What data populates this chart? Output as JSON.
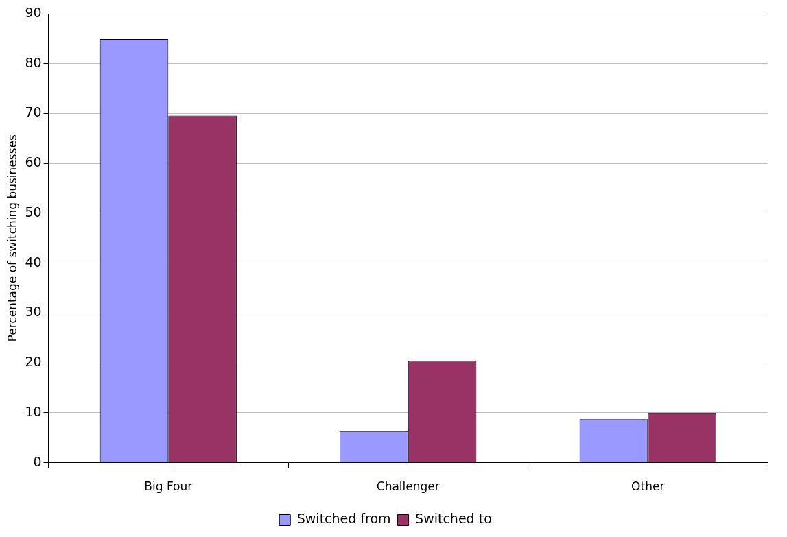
{
  "chart_data": {
    "type": "bar",
    "ylabel": "Percentage of switching businesses",
    "categories": [
      "Big Four",
      "Challenger",
      "Other"
    ],
    "series": [
      {
        "name": "Switched from",
        "color": "#9999ff",
        "values": [
          84.9,
          6.3,
          8.7
        ]
      },
      {
        "name": "Switched to",
        "color": "#993366",
        "values": [
          69.6,
          20.4,
          10.0
        ]
      }
    ],
    "ylim": [
      0,
      90
    ],
    "yticks": [
      0,
      10,
      20,
      30,
      40,
      50,
      60,
      70,
      80,
      90
    ],
    "grid": "y",
    "legend": "bottom"
  }
}
